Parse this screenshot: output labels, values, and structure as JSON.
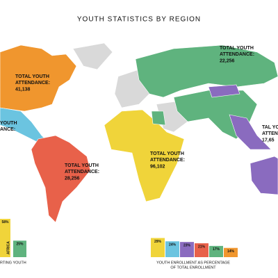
{
  "title": "YOUTH STATISTICS BY REGION",
  "regions": [
    {
      "name": "north-america",
      "lines": [
        "TOTAL YOUTH",
        "ATTENDANCE:",
        "41,138"
      ]
    },
    {
      "name": "europe",
      "lines": [
        "TOTAL YOUTH",
        "ATTENDANCE:",
        "22,256"
      ]
    },
    {
      "name": "central-america",
      "lines": [
        "YOUTH",
        "ANCE:"
      ]
    },
    {
      "name": "south-america",
      "lines": [
        "TOTAL YOUTH",
        "ATTENDANCE:",
        "28,256"
      ]
    },
    {
      "name": "africa",
      "lines": [
        "TOTAL YOUTH",
        "ATTENDANCE:",
        "96,102"
      ]
    },
    {
      "name": "asia",
      "lines": [
        "TAL YOUTH",
        "ATTENDA",
        "17,65"
      ]
    }
  ],
  "supporting_chart": {
    "values": [
      58,
      25
    ],
    "value_labels": [
      "58%",
      "25%"
    ],
    "colors": [
      "#f0d43a",
      "#5fb37e"
    ],
    "bar_text": "AFRICA",
    "caption": "RTING YOUTH"
  },
  "enrollment_chart": {
    "values": [
      29,
      24,
      23,
      21,
      17,
      14
    ],
    "value_labels": [
      "29%",
      "24%",
      "23%",
      "21%",
      "17%",
      "14%"
    ],
    "colors": [
      "#f0d43a",
      "#6bc4e0",
      "#8a6bbf",
      "#e8614a",
      "#5fb37e",
      "#f0962e"
    ],
    "caption_lines": [
      "YOUTH ENROLLMENT AS PERCENTAGE",
      "OF TOTAL ENROLLMENT"
    ]
  }
}
